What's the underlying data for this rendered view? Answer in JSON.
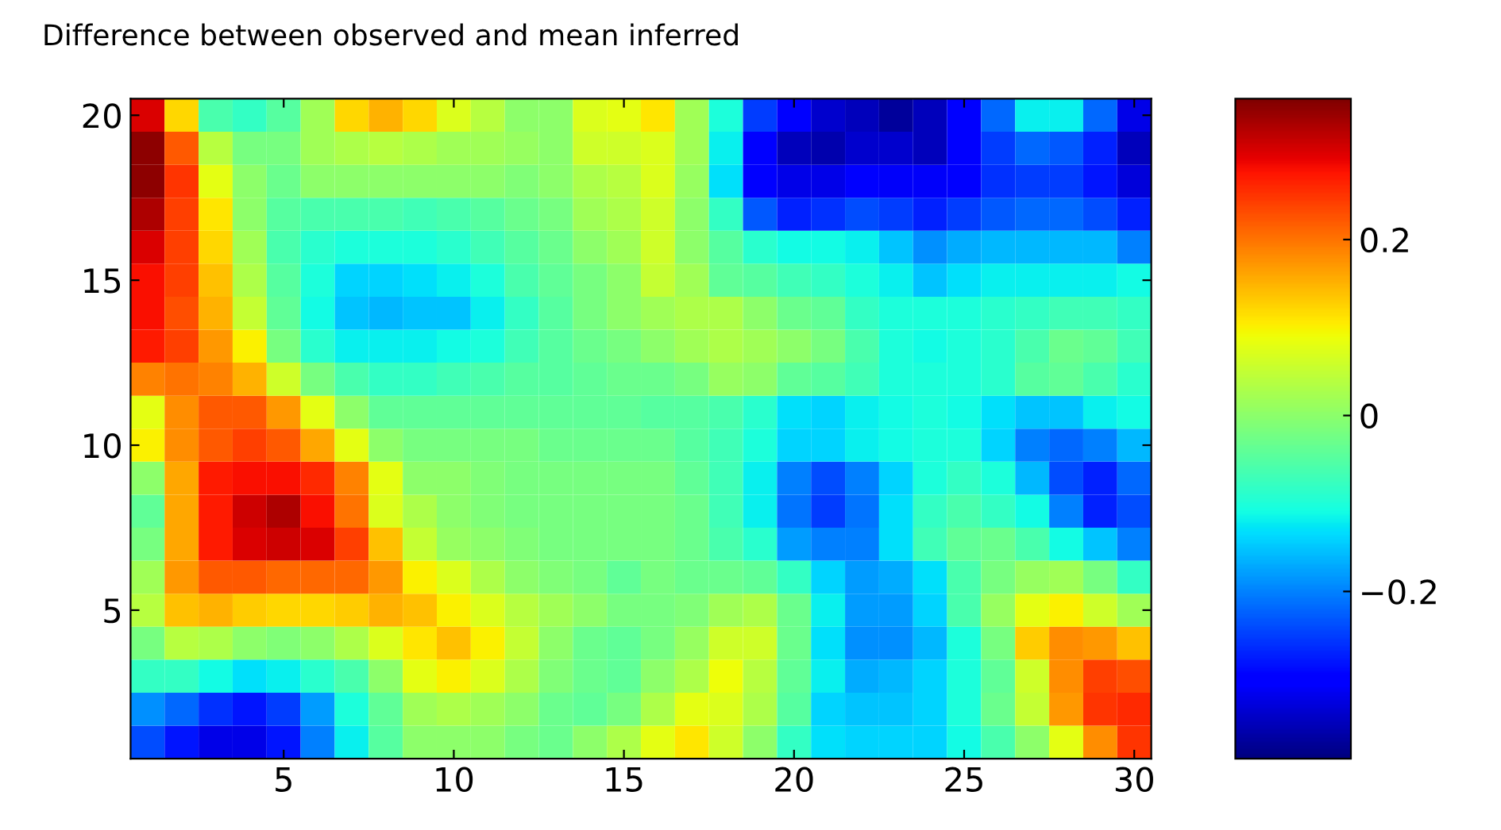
{
  "chart_data": {
    "type": "heatmap",
    "title": "Difference between observed and mean inferred",
    "categories": [
      null,
      null,
      null,
      null,
      "5",
      null,
      null,
      null,
      null,
      "10",
      null,
      null,
      null,
      null,
      "15",
      null,
      null,
      null,
      null,
      "20",
      null,
      null,
      null,
      null,
      "25",
      null,
      null,
      null,
      null,
      "30"
    ],
    "y_categories": [
      "20",
      null,
      null,
      null,
      null,
      "15",
      null,
      null,
      null,
      null,
      "10",
      null,
      null,
      null,
      null,
      "5",
      null,
      null,
      null,
      null
    ],
    "cells": [
      [
        0.3,
        0.12,
        -0.06,
        -0.08,
        -0.05,
        0.02,
        0.12,
        0.15,
        0.12,
        0.07,
        0.04,
        0.0,
        0.0,
        0.07,
        0.08,
        0.11,
        0.02,
        -0.1,
        -0.25,
        -0.3,
        -0.34,
        -0.35,
        -0.37,
        -0.35,
        -0.3,
        -0.22,
        -0.12,
        -0.12,
        -0.22,
        -0.32
      ],
      [
        0.35,
        0.22,
        0.04,
        -0.02,
        -0.02,
        0.02,
        0.03,
        0.04,
        0.03,
        0.02,
        0.02,
        0.01,
        0.0,
        0.06,
        0.06,
        0.07,
        0.02,
        -0.12,
        -0.3,
        -0.35,
        -0.36,
        -0.34,
        -0.34,
        -0.35,
        -0.3,
        -0.25,
        -0.22,
        -0.23,
        -0.27,
        -0.35
      ],
      [
        0.35,
        0.25,
        0.08,
        0.0,
        -0.03,
        0.0,
        0.0,
        0.0,
        0.0,
        0.0,
        0.0,
        -0.01,
        0.0,
        0.03,
        0.04,
        0.07,
        0.01,
        -0.13,
        -0.3,
        -0.32,
        -0.32,
        -0.3,
        -0.31,
        -0.31,
        -0.3,
        -0.26,
        -0.25,
        -0.25,
        -0.28,
        -0.33
      ],
      [
        0.33,
        0.24,
        0.11,
        0.0,
        -0.05,
        -0.06,
        -0.06,
        -0.06,
        -0.07,
        -0.06,
        -0.05,
        -0.03,
        -0.02,
        0.02,
        0.03,
        0.06,
        0.0,
        -0.08,
        -0.23,
        -0.27,
        -0.26,
        -0.24,
        -0.25,
        -0.27,
        -0.25,
        -0.23,
        -0.22,
        -0.22,
        -0.24,
        -0.27
      ],
      [
        0.3,
        0.24,
        0.12,
        0.02,
        -0.06,
        -0.09,
        -0.1,
        -0.1,
        -0.1,
        -0.09,
        -0.07,
        -0.05,
        -0.03,
        0.0,
        0.02,
        0.06,
        0.0,
        -0.05,
        -0.09,
        -0.11,
        -0.11,
        -0.12,
        -0.15,
        -0.19,
        -0.17,
        -0.16,
        -0.16,
        -0.16,
        -0.16,
        -0.2
      ],
      [
        0.28,
        0.24,
        0.14,
        0.03,
        -0.05,
        -0.1,
        -0.14,
        -0.14,
        -0.13,
        -0.12,
        -0.1,
        -0.06,
        -0.04,
        -0.02,
        0.0,
        0.05,
        0.02,
        -0.04,
        -0.05,
        -0.07,
        -0.08,
        -0.1,
        -0.12,
        -0.15,
        -0.13,
        -0.12,
        -0.12,
        -0.12,
        -0.12,
        -0.11
      ],
      [
        0.28,
        0.23,
        0.15,
        0.05,
        -0.04,
        -0.11,
        -0.15,
        -0.16,
        -0.15,
        -0.15,
        -0.12,
        -0.08,
        -0.05,
        -0.02,
        0.0,
        0.02,
        0.03,
        0.03,
        0.0,
        -0.03,
        -0.04,
        -0.08,
        -0.1,
        -0.1,
        -0.1,
        -0.09,
        -0.08,
        -0.07,
        -0.07,
        -0.08
      ],
      [
        0.27,
        0.24,
        0.17,
        0.1,
        -0.02,
        -0.09,
        -0.12,
        -0.12,
        -0.12,
        -0.11,
        -0.1,
        -0.07,
        -0.05,
        -0.03,
        -0.02,
        0.0,
        0.02,
        0.03,
        0.02,
        0.0,
        -0.02,
        -0.06,
        -0.1,
        -0.11,
        -0.1,
        -0.09,
        -0.06,
        -0.03,
        -0.04,
        -0.07
      ],
      [
        0.19,
        0.2,
        0.19,
        0.15,
        0.06,
        -0.02,
        -0.06,
        -0.08,
        -0.08,
        -0.07,
        -0.06,
        -0.05,
        -0.05,
        -0.04,
        -0.03,
        -0.03,
        -0.02,
        0.01,
        0.0,
        -0.04,
        -0.05,
        -0.07,
        -0.1,
        -0.1,
        -0.1,
        -0.09,
        -0.05,
        -0.04,
        -0.06,
        -0.09
      ],
      [
        0.08,
        0.18,
        0.22,
        0.22,
        0.17,
        0.08,
        0.0,
        -0.04,
        -0.04,
        -0.04,
        -0.04,
        -0.04,
        -0.04,
        -0.04,
        -0.04,
        -0.05,
        -0.05,
        -0.06,
        -0.09,
        -0.13,
        -0.14,
        -0.12,
        -0.11,
        -0.1,
        -0.11,
        -0.13,
        -0.15,
        -0.15,
        -0.12,
        -0.11
      ],
      [
        0.1,
        0.18,
        0.22,
        0.24,
        0.22,
        0.16,
        0.08,
        0.0,
        -0.02,
        -0.02,
        -0.02,
        -0.02,
        -0.03,
        -0.03,
        -0.03,
        -0.03,
        -0.05,
        -0.07,
        -0.1,
        -0.14,
        -0.14,
        -0.12,
        -0.11,
        -0.1,
        -0.1,
        -0.14,
        -0.2,
        -0.22,
        -0.2,
        -0.16
      ],
      [
        0.0,
        0.16,
        0.27,
        0.28,
        0.28,
        0.26,
        0.19,
        0.08,
        0.0,
        0.0,
        -0.01,
        -0.02,
        -0.02,
        -0.02,
        -0.02,
        -0.02,
        -0.04,
        -0.07,
        -0.12,
        -0.2,
        -0.24,
        -0.2,
        -0.14,
        -0.1,
        -0.08,
        -0.1,
        -0.16,
        -0.24,
        -0.27,
        -0.22
      ],
      [
        -0.04,
        0.16,
        0.27,
        0.31,
        0.33,
        0.28,
        0.2,
        0.07,
        0.03,
        0.0,
        -0.01,
        -0.02,
        -0.02,
        -0.02,
        -0.02,
        -0.02,
        -0.03,
        -0.07,
        -0.12,
        -0.21,
        -0.25,
        -0.21,
        -0.13,
        -0.08,
        -0.06,
        -0.08,
        -0.11,
        -0.2,
        -0.27,
        -0.24
      ],
      [
        -0.02,
        0.16,
        0.27,
        0.3,
        0.31,
        0.3,
        0.24,
        0.14,
        0.05,
        0.01,
        0.0,
        -0.01,
        -0.02,
        -0.02,
        -0.02,
        -0.02,
        -0.03,
        -0.06,
        -0.09,
        -0.18,
        -0.2,
        -0.2,
        -0.13,
        -0.07,
        -0.04,
        -0.03,
        -0.06,
        -0.11,
        -0.15,
        -0.2
      ],
      [
        0.02,
        0.17,
        0.22,
        0.22,
        0.21,
        0.21,
        0.21,
        0.17,
        0.1,
        0.07,
        0.03,
        0.0,
        -0.01,
        -0.02,
        -0.04,
        -0.02,
        -0.03,
        -0.03,
        -0.04,
        -0.08,
        -0.14,
        -0.18,
        -0.17,
        -0.13,
        -0.06,
        -0.02,
        0.01,
        0.02,
        -0.02,
        -0.08
      ],
      [
        0.04,
        0.14,
        0.15,
        0.13,
        0.12,
        0.12,
        0.13,
        0.15,
        0.14,
        0.1,
        0.07,
        0.04,
        0.02,
        0.0,
        -0.02,
        -0.02,
        -0.01,
        0.02,
        0.03,
        -0.03,
        -0.12,
        -0.18,
        -0.18,
        -0.14,
        -0.06,
        0.01,
        0.08,
        0.1,
        0.06,
        0.02
      ],
      [
        -0.02,
        0.04,
        0.03,
        0.0,
        -0.01,
        0.0,
        0.03,
        0.07,
        0.11,
        0.14,
        0.1,
        0.05,
        0.0,
        -0.03,
        -0.04,
        -0.02,
        0.01,
        0.06,
        0.06,
        -0.03,
        -0.13,
        -0.19,
        -0.19,
        -0.16,
        -0.1,
        -0.02,
        0.13,
        0.18,
        0.17,
        0.14
      ],
      [
        -0.08,
        -0.08,
        -0.11,
        -0.13,
        -0.12,
        -0.09,
        -0.06,
        0.0,
        0.08,
        0.1,
        0.07,
        0.03,
        -0.01,
        -0.03,
        -0.04,
        0.0,
        0.03,
        0.09,
        0.04,
        -0.04,
        -0.12,
        -0.17,
        -0.16,
        -0.14,
        -0.1,
        -0.04,
        0.06,
        0.18,
        0.24,
        0.23
      ],
      [
        -0.19,
        -0.22,
        -0.26,
        -0.28,
        -0.25,
        -0.18,
        -0.1,
        -0.04,
        0.02,
        0.03,
        0.02,
        0.0,
        -0.03,
        -0.04,
        -0.02,
        0.03,
        0.08,
        0.07,
        0.03,
        -0.05,
        -0.14,
        -0.15,
        -0.15,
        -0.14,
        -0.1,
        -0.03,
        0.05,
        0.17,
        0.25,
        0.26
      ],
      [
        -0.24,
        -0.28,
        -0.32,
        -0.32,
        -0.28,
        -0.2,
        -0.12,
        -0.05,
        0.0,
        0.0,
        0.0,
        -0.02,
        -0.03,
        0.0,
        0.03,
        0.08,
        0.11,
        0.06,
        0.0,
        -0.08,
        -0.13,
        -0.14,
        -0.14,
        -0.14,
        -0.11,
        -0.06,
        0.0,
        0.08,
        0.18,
        0.25
      ]
    ],
    "clim": [
      -0.39,
      0.36
    ],
    "cticks": [
      {
        "value": -0.2,
        "label": "−0.2"
      },
      0,
      0.2
    ]
  }
}
